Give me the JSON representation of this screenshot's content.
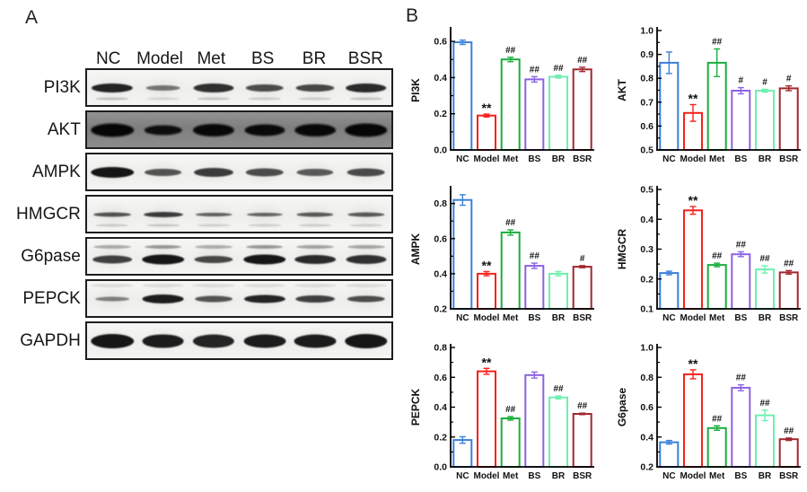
{
  "figure": {
    "panel_a_label": "A",
    "panel_b_label": "B"
  },
  "groups": [
    "NC",
    "Model",
    "Met",
    "BS",
    "BR",
    "BSR"
  ],
  "group_colors": {
    "NC": "#3C80DA",
    "Model": "#F5221B",
    "Met": "#1CAE3E",
    "BS": "#8D62E2",
    "BR": "#6FEFB0",
    "BSR": "#A1272E"
  },
  "panel_a": {
    "lane_headers": [
      "NC",
      "Model",
      "Met",
      "BS",
      "BR",
      "BSR"
    ],
    "blots": [
      {
        "label": "PI3K",
        "background": "light",
        "band_scale": 11,
        "sub_band": "below",
        "band_intensities": [
          0.9,
          0.3,
          0.8,
          0.6,
          0.65,
          0.85
        ]
      },
      {
        "label": "AKT",
        "background": "dark",
        "band_scale": 15,
        "sub_band": "none",
        "band_intensities": [
          1.0,
          0.6,
          0.9,
          0.8,
          0.85,
          1.0
        ]
      },
      {
        "label": "AMPK",
        "background": "light",
        "band_scale": 12,
        "sub_band": "none",
        "band_intensities": [
          1.0,
          0.55,
          0.72,
          0.6,
          0.5,
          0.62
        ]
      },
      {
        "label": "HMGCR",
        "background": "light",
        "band_scale": 7,
        "sub_band": "below",
        "band_intensities": [
          0.55,
          0.72,
          0.45,
          0.42,
          0.5,
          0.5
        ]
      },
      {
        "label": "G6pase",
        "background": "light",
        "band_scale": 11,
        "sub_band": "above",
        "band_intensities": [
          0.7,
          1.0,
          0.65,
          1.0,
          0.85,
          0.8
        ]
      },
      {
        "label": "PEPCK",
        "background": "light",
        "band_scale": 10,
        "sub_band": "faint-above",
        "band_intensities": [
          0.22,
          0.95,
          0.55,
          0.9,
          0.7,
          0.6
        ]
      },
      {
        "label": "GAPDH",
        "background": "light",
        "band_scale": 16,
        "sub_band": "none",
        "band_intensities": [
          1.0,
          0.95,
          0.9,
          0.95,
          0.95,
          1.0
        ]
      }
    ]
  },
  "chart_data": [
    {
      "type": "bar",
      "title": "PI3K",
      "ylabel": "PI3K",
      "xlabel": "",
      "categories": [
        "NC",
        "Model",
        "Met",
        "BS",
        "BR",
        "BSR"
      ],
      "values": [
        0.595,
        0.19,
        0.5,
        0.39,
        0.405,
        0.445
      ],
      "errors": [
        0.012,
        0.008,
        0.012,
        0.015,
        0.008,
        0.012
      ],
      "markers": [
        "",
        "**",
        "##",
        "##",
        "##",
        "##"
      ],
      "ylim": [
        0.0,
        0.66
      ],
      "yticks": [
        0.0,
        0.2,
        0.4,
        0.6
      ],
      "grid": false,
      "legend": "none"
    },
    {
      "type": "bar",
      "title": "AKT",
      "ylabel": "AKT",
      "xlabel": "",
      "categories": [
        "NC",
        "Model",
        "Met",
        "BS",
        "BR",
        "BSR"
      ],
      "values": [
        0.865,
        0.655,
        0.865,
        0.748,
        0.748,
        0.758
      ],
      "errors": [
        0.045,
        0.035,
        0.058,
        0.013,
        0.006,
        0.01
      ],
      "markers": [
        "",
        "**",
        "##",
        "#",
        "#",
        "#"
      ],
      "ylim": [
        0.5,
        1.0
      ],
      "yticks": [
        0.5,
        0.6,
        0.7,
        0.8,
        0.9,
        1.0
      ],
      "grid": false,
      "legend": "none"
    },
    {
      "type": "bar",
      "title": "AMPK",
      "ylabel": "AMPK",
      "xlabel": "",
      "categories": [
        "NC",
        "Model",
        "Met",
        "BS",
        "BR",
        "BSR"
      ],
      "values": [
        0.82,
        0.4,
        0.635,
        0.445,
        0.4,
        0.44
      ],
      "errors": [
        0.03,
        0.012,
        0.015,
        0.015,
        0.012,
        0.006
      ],
      "markers": [
        "",
        "**",
        "##",
        "##",
        "",
        "#"
      ],
      "ylim": [
        0.2,
        0.88
      ],
      "yticks": [
        0.2,
        0.4,
        0.6,
        0.8
      ],
      "grid": false,
      "legend": "none"
    },
    {
      "type": "bar",
      "title": "HMGCR",
      "ylabel": "HMGCR",
      "xlabel": "",
      "categories": [
        "NC",
        "Model",
        "Met",
        "BS",
        "BR",
        "BSR"
      ],
      "values": [
        0.22,
        0.43,
        0.247,
        0.283,
        0.232,
        0.222
      ],
      "errors": [
        0.006,
        0.013,
        0.006,
        0.008,
        0.012,
        0.006
      ],
      "markers": [
        "",
        "**",
        "##",
        "##",
        "##",
        "##"
      ],
      "ylim": [
        0.1,
        0.5
      ],
      "yticks": [
        0.1,
        0.2,
        0.3,
        0.4,
        0.5
      ],
      "grid": false,
      "legend": "none"
    },
    {
      "type": "bar",
      "title": "PEPCK",
      "ylabel": "PEPCK",
      "xlabel": "",
      "categories": [
        "NC",
        "Model",
        "Met",
        "BS",
        "BR",
        "BSR"
      ],
      "values": [
        0.18,
        0.64,
        0.325,
        0.615,
        0.465,
        0.355
      ],
      "errors": [
        0.022,
        0.02,
        0.012,
        0.02,
        0.01,
        0.005
      ],
      "markers": [
        "",
        "**",
        "##",
        "",
        "##",
        "##"
      ],
      "ylim": [
        0.0,
        0.8
      ],
      "yticks": [
        0.0,
        0.2,
        0.4,
        0.6,
        0.8
      ],
      "grid": false,
      "legend": "none"
    },
    {
      "type": "bar",
      "title": "G6pase",
      "ylabel": "G6pase",
      "xlabel": "",
      "categories": [
        "NC",
        "Model",
        "Met",
        "BS",
        "BR",
        "BSR"
      ],
      "values": [
        0.365,
        0.82,
        0.46,
        0.73,
        0.545,
        0.385
      ],
      "errors": [
        0.012,
        0.03,
        0.015,
        0.02,
        0.035,
        0.008
      ],
      "markers": [
        "",
        "**",
        "##",
        "##",
        "##",
        "##"
      ],
      "ylim": [
        0.2,
        1.0
      ],
      "yticks": [
        0.2,
        0.4,
        0.6,
        0.8,
        1.0
      ],
      "grid": false,
      "legend": "none"
    }
  ]
}
